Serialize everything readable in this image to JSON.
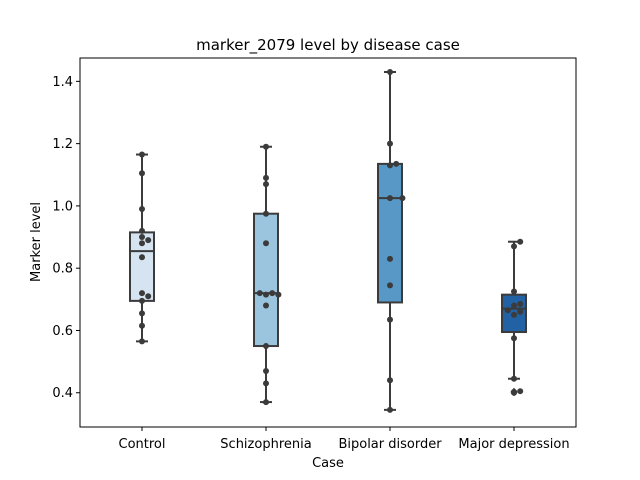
{
  "chart_data": {
    "type": "box",
    "title": "marker_2079 level by disease case",
    "xlabel": "Case",
    "ylabel": "Marker level",
    "ylim": [
      0.29,
      1.475
    ],
    "yticks": [
      0.4,
      0.6,
      0.8,
      1.0,
      1.2,
      1.4
    ],
    "ytick_labels": [
      "0.4",
      "0.6",
      "0.8",
      "1.0",
      "1.2",
      "1.4"
    ],
    "grid": false,
    "categories": [
      "Control",
      "Schizophrenia",
      "Bipolar disorder",
      "Major depression"
    ],
    "colors": [
      "#d6e4f2",
      "#9bc5de",
      "#5898c6",
      "#2261a3"
    ],
    "boxes": [
      {
        "category": "Control",
        "whislo": 0.565,
        "q1": 0.695,
        "median": 0.855,
        "q3": 0.915,
        "whishi": 1.165,
        "fliers": []
      },
      {
        "category": "Schizophrenia",
        "whislo": 0.37,
        "q1": 0.55,
        "median": 0.72,
        "q3": 0.975,
        "whishi": 1.19,
        "fliers": []
      },
      {
        "category": "Bipolar disorder",
        "whislo": 0.345,
        "q1": 0.69,
        "median": 1.025,
        "q3": 1.135,
        "whishi": 1.43,
        "fliers": []
      },
      {
        "category": "Major depression",
        "whislo": 0.445,
        "q1": 0.595,
        "median": 0.67,
        "q3": 0.715,
        "whishi": 0.885,
        "fliers": [
          0.405,
          0.4
        ]
      }
    ],
    "points": [
      [
        0.565,
        0.615,
        0.655,
        0.695,
        0.71,
        0.72,
        0.835,
        0.88,
        0.89,
        0.9,
        0.92,
        0.99,
        1.105,
        1.165
      ],
      [
        0.37,
        0.43,
        0.47,
        0.55,
        0.68,
        0.715,
        0.715,
        0.72,
        0.72,
        0.88,
        0.975,
        1.07,
        1.09,
        1.19
      ],
      [
        0.345,
        0.44,
        0.635,
        0.745,
        0.83,
        1.025,
        1.025,
        1.135,
        1.13,
        1.2,
        1.43
      ],
      [
        0.4,
        0.405,
        0.445,
        0.575,
        0.65,
        0.66,
        0.665,
        0.68,
        0.685,
        0.725,
        0.87,
        0.885
      ]
    ]
  }
}
